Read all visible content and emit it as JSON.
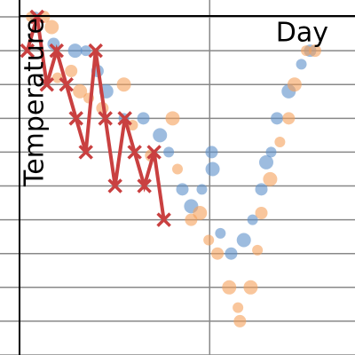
{
  "chart_data": {
    "type": "scatter",
    "xlabel": "Day",
    "ylabel": "Temperature",
    "xlim": [
      -1.8,
      34.6
    ],
    "ylim": [
      0,
      10.5
    ],
    "xticks": [
      19.7
    ],
    "yticks": [
      0,
      1,
      2,
      3,
      4,
      5,
      6,
      7,
      8,
      9,
      10
    ],
    "grid": true,
    "series": [
      {
        "type": "scatter",
        "color": "#5b8fc9",
        "x": [
          1.8,
          3.7,
          5.9,
          7.0,
          8.2,
          9.1,
          10.9,
          12.9,
          14.6,
          15.5,
          16.9,
          17.8,
          18.9,
          19.9,
          20.0,
          20.8,
          21.9,
          23.2,
          24.1,
          25.0,
          25.5,
          26.0,
          26.6,
          27.8,
          29.1,
          30.0
        ],
        "values": [
          10.0,
          9.2,
          9.0,
          9.0,
          8.4,
          7.8,
          7.0,
          7.0,
          6.5,
          6.0,
          4.9,
          4.4,
          4.9,
          6.0,
          5.5,
          3.6,
          3.0,
          3.4,
          4.0,
          4.9,
          5.7,
          6.0,
          7.0,
          7.8,
          8.6,
          9.0
        ]
      },
      {
        "type": "scatter",
        "color": "#f5a05a",
        "x": [
          1.4,
          2.7,
          3.5,
          4.1,
          5.5,
          6.4,
          7.3,
          8.7,
          10.9,
          11.8,
          13.7,
          15.9,
          16.4,
          17.8,
          18.7,
          19.6,
          20.5,
          21.7,
          22.6,
          22.8,
          23.9,
          24.6,
          25.0,
          25.9,
          26.9,
          27.8,
          28.4,
          29.6,
          30.5
        ],
        "values": [
          10.0,
          10.0,
          9.7,
          8.2,
          8.4,
          7.8,
          7.6,
          7.3,
          8.0,
          6.8,
          5.9,
          7.0,
          5.5,
          4.0,
          4.2,
          3.4,
          3.0,
          2.0,
          1.4,
          1.0,
          2.0,
          3.1,
          4.2,
          5.2,
          6.3,
          7.0,
          8.0,
          9.0,
          9.0
        ]
      },
      {
        "type": "line",
        "color": "#c94040",
        "x": [
          1,
          2,
          3,
          4,
          5,
          6,
          7,
          8,
          9,
          10,
          11,
          12,
          13,
          14,
          15
        ],
        "values": [
          9,
          10,
          8,
          9,
          8,
          7,
          6,
          9,
          7,
          5,
          7,
          6,
          5,
          6,
          4
        ]
      }
    ]
  }
}
